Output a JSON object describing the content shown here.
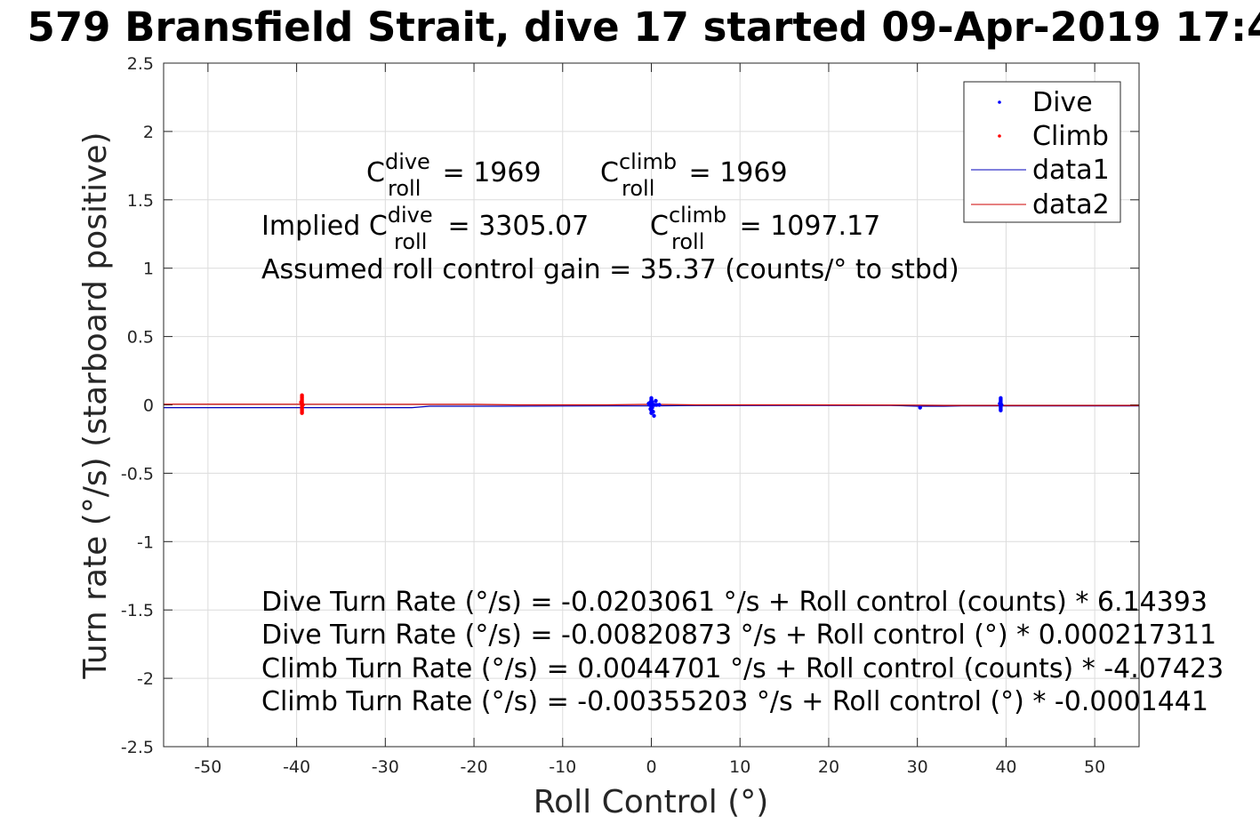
{
  "chart_data": {
    "type": "scatter",
    "title": "579 Bransfield Strait, dive 17 started 09-Apr-2019 17:4",
    "xlabel": "Roll Control (°)",
    "ylabel": "Turn rate (°/s) (starboard positive)",
    "xlim": [
      -55,
      55
    ],
    "ylim": [
      -2.5,
      2.5
    ],
    "xticks": [
      "-50",
      "-40",
      "-30",
      "-20",
      "-10",
      "0",
      "10",
      "20",
      "30",
      "40",
      "50"
    ],
    "yticks": [
      "2.5",
      "2",
      "1.5",
      "1",
      "0.5",
      "0",
      "-0.5",
      "-1",
      "-1.5",
      "-2",
      "-2.5"
    ],
    "grid": true,
    "legend_position": "top-right",
    "legend": [
      "Dive",
      "Climb",
      "data1",
      "data2"
    ],
    "series": [
      {
        "name": "Dive",
        "kind": "points",
        "color": "#0000ff",
        "points": [
          [
            0,
            0.05
          ],
          [
            0,
            0.04
          ],
          [
            0,
            0.03
          ],
          [
            0.1,
            0.02
          ],
          [
            -0.1,
            0.02
          ],
          [
            0,
            0.01
          ],
          [
            0.2,
            0.0
          ],
          [
            -0.2,
            0.0
          ],
          [
            0,
            -0.01
          ],
          [
            0.1,
            -0.02
          ],
          [
            -0.1,
            -0.03
          ],
          [
            0,
            -0.04
          ],
          [
            0.2,
            -0.05
          ],
          [
            0,
            -0.06
          ],
          [
            0.3,
            -0.08
          ],
          [
            -0.3,
            0.01
          ],
          [
            0.4,
            0.0
          ],
          [
            0.6,
            0.0
          ],
          [
            0.9,
            0.0
          ],
          [
            0.5,
            0.03
          ],
          [
            30.3,
            -0.02
          ],
          [
            39.4,
            0.05
          ],
          [
            39.4,
            0.04
          ],
          [
            39.4,
            0.03
          ],
          [
            39.4,
            0.02
          ],
          [
            39.4,
            0.01
          ],
          [
            39.4,
            0.0
          ],
          [
            39.4,
            -0.01
          ],
          [
            39.4,
            -0.02
          ],
          [
            39.4,
            -0.03
          ],
          [
            39.4,
            -0.04
          ],
          [
            39.5,
            0.0
          ],
          [
            39.3,
            0.01
          ]
        ]
      },
      {
        "name": "Climb",
        "kind": "points",
        "color": "#ff0000",
        "points": [
          [
            -39.4,
            0.07
          ],
          [
            -39.4,
            0.06
          ],
          [
            -39.4,
            0.05
          ],
          [
            -39.4,
            0.04
          ],
          [
            -39.4,
            0.03
          ],
          [
            -39.4,
            0.02
          ],
          [
            -39.4,
            0.01
          ],
          [
            -39.4,
            0.0
          ],
          [
            -39.4,
            -0.01
          ],
          [
            -39.4,
            -0.02
          ],
          [
            -39.4,
            -0.03
          ],
          [
            -39.4,
            -0.04
          ],
          [
            -39.4,
            -0.05
          ],
          [
            -39.4,
            -0.06
          ],
          [
            -39.3,
            0.0
          ],
          [
            -39.5,
            0.02
          ]
        ]
      },
      {
        "name": "data1",
        "kind": "line",
        "color": "#0000bb",
        "points": [
          [
            -55,
            -0.02
          ],
          [
            -27,
            -0.02
          ],
          [
            -25,
            -0.01
          ],
          [
            -17,
            -0.01
          ],
          [
            -5,
            -0.008
          ],
          [
            0,
            -0.008
          ],
          [
            4,
            -0.005
          ],
          [
            20,
            -0.004
          ],
          [
            27,
            -0.004
          ],
          [
            30,
            -0.01
          ],
          [
            33,
            -0.01
          ],
          [
            35,
            -0.008
          ],
          [
            55,
            -0.008
          ]
        ]
      },
      {
        "name": "data2",
        "kind": "line",
        "color": "#cc0000",
        "points": [
          [
            -55,
            0.005
          ],
          [
            -20,
            0.004
          ],
          [
            -15,
            0.0
          ],
          [
            -5,
            0.0
          ],
          [
            0,
            0.004
          ],
          [
            5,
            0.0
          ],
          [
            15,
            0.0
          ],
          [
            30,
            -0.002
          ],
          [
            33,
            -0.004
          ],
          [
            55,
            -0.004
          ]
        ]
      }
    ]
  },
  "annotations": {
    "line1": {
      "c1": {
        "base": "C",
        "sup": "dive",
        "sub": "roll",
        "rest": " = 1969"
      },
      "c2": {
        "base": "C",
        "sup": "climb",
        "sub": "roll",
        "rest": " = 1969"
      }
    },
    "line2": {
      "prefix": "Implied ",
      "c1": {
        "base": "C",
        "sup": "dive",
        "sub": "roll",
        "rest": " = 3305.07"
      },
      "c2": {
        "base": "C",
        "sup": "climb",
        "sub": "roll",
        "rest": " = 1097.17"
      }
    },
    "line3": "Assumed roll control gain = 35.37 (counts/° to stbd)",
    "eq1": "Dive Turn Rate (°/s) = -0.0203061 °/s + Roll control (counts) * 6.14393",
    "eq2": "Dive Turn Rate (°/s) = -0.00820873 °/s + Roll control (°) * 0.000217311",
    "eq3": "Climb Turn Rate (°/s) = 0.0044701 °/s + Roll control (counts) * -4.07423",
    "eq4": "Climb Turn Rate (°/s) = -0.00355203 °/s + Roll control (°) * -0.0001441"
  }
}
